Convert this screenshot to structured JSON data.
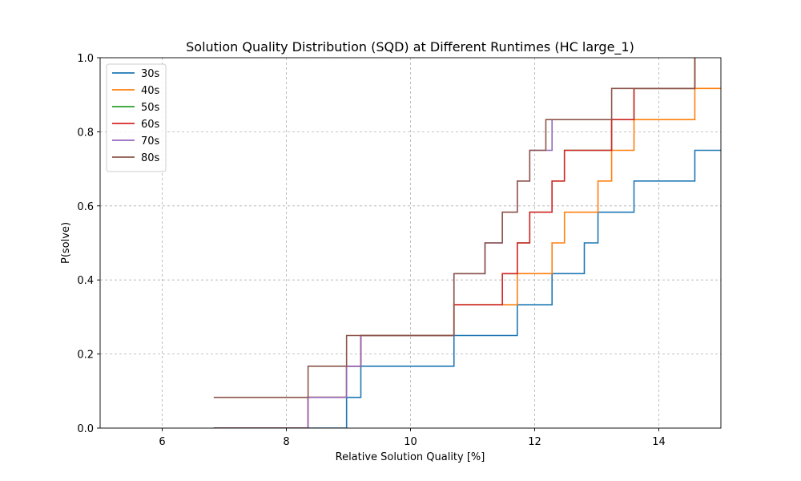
{
  "chart_data": {
    "type": "line",
    "step": true,
    "title": "Solution Quality Distribution (SQD) at Different Runtimes (HC large_1)",
    "xlabel": "Relative Solution Quality [%]",
    "ylabel": "P(solve)",
    "xlim": [
      5,
      15
    ],
    "ylim": [
      0,
      1
    ],
    "xticks": [
      6,
      8,
      10,
      12,
      14
    ],
    "yticks": [
      0.0,
      0.2,
      0.4,
      0.6,
      0.8,
      1.0
    ],
    "xtick_labels": [
      "6",
      "8",
      "10",
      "12",
      "14"
    ],
    "ytick_labels": [
      "0.0",
      "0.2",
      "0.4",
      "0.6",
      "0.8",
      "1.0"
    ],
    "grid": true,
    "legend_position": "top-left",
    "series": [
      {
        "name": "30s",
        "color": "#1f77b4",
        "points": [
          [
            6.83,
            0.0
          ],
          [
            8.97,
            0.0
          ],
          [
            8.97,
            0.083
          ],
          [
            9.2,
            0.083
          ],
          [
            9.2,
            0.167
          ],
          [
            10.7,
            0.167
          ],
          [
            10.7,
            0.25
          ],
          [
            11.72,
            0.25
          ],
          [
            11.72,
            0.333
          ],
          [
            12.28,
            0.333
          ],
          [
            12.28,
            0.417
          ],
          [
            12.8,
            0.417
          ],
          [
            12.8,
            0.5
          ],
          [
            13.02,
            0.5
          ],
          [
            13.02,
            0.583
          ],
          [
            13.6,
            0.583
          ],
          [
            13.6,
            0.667
          ],
          [
            14.58,
            0.667
          ],
          [
            14.58,
            0.75
          ],
          [
            15.0,
            0.75
          ]
        ]
      },
      {
        "name": "40s",
        "color": "#ff7f0e",
        "points": [
          [
            6.83,
            0.0
          ],
          [
            8.35,
            0.0
          ],
          [
            8.35,
            0.083
          ],
          [
            8.97,
            0.083
          ],
          [
            8.97,
            0.167
          ],
          [
            9.2,
            0.167
          ],
          [
            9.2,
            0.25
          ],
          [
            10.7,
            0.25
          ],
          [
            10.7,
            0.333
          ],
          [
            11.72,
            0.333
          ],
          [
            11.72,
            0.417
          ],
          [
            12.28,
            0.417
          ],
          [
            12.28,
            0.5
          ],
          [
            12.48,
            0.5
          ],
          [
            12.48,
            0.583
          ],
          [
            13.02,
            0.583
          ],
          [
            13.02,
            0.667
          ],
          [
            13.24,
            0.667
          ],
          [
            13.24,
            0.75
          ],
          [
            13.6,
            0.75
          ],
          [
            13.6,
            0.833
          ],
          [
            14.58,
            0.833
          ],
          [
            14.58,
            0.917
          ],
          [
            15.0,
            0.917
          ]
        ]
      },
      {
        "name": "50s",
        "color": "#2ca02c",
        "points": [
          [
            6.83,
            0.0
          ],
          [
            8.35,
            0.0
          ],
          [
            8.35,
            0.083
          ],
          [
            8.97,
            0.083
          ],
          [
            8.97,
            0.167
          ],
          [
            9.2,
            0.167
          ],
          [
            9.2,
            0.25
          ],
          [
            10.7,
            0.25
          ],
          [
            10.7,
            0.333
          ],
          [
            11.48,
            0.333
          ],
          [
            11.48,
            0.417
          ],
          [
            11.72,
            0.417
          ],
          [
            11.72,
            0.5
          ],
          [
            11.92,
            0.5
          ],
          [
            11.92,
            0.583
          ],
          [
            12.28,
            0.583
          ],
          [
            12.28,
            0.667
          ],
          [
            12.48,
            0.667
          ],
          [
            12.48,
            0.75
          ],
          [
            13.24,
            0.75
          ],
          [
            13.24,
            0.833
          ],
          [
            13.6,
            0.833
          ],
          [
            13.6,
            0.917
          ],
          [
            14.58,
            0.917
          ],
          [
            14.58,
            1.0
          ]
        ]
      },
      {
        "name": "60s",
        "color": "#d62728",
        "points": [
          [
            6.83,
            0.0
          ],
          [
            8.35,
            0.0
          ],
          [
            8.35,
            0.083
          ],
          [
            8.97,
            0.083
          ],
          [
            8.97,
            0.167
          ],
          [
            9.2,
            0.167
          ],
          [
            9.2,
            0.25
          ],
          [
            10.7,
            0.25
          ],
          [
            10.7,
            0.333
          ],
          [
            11.48,
            0.333
          ],
          [
            11.48,
            0.417
          ],
          [
            11.72,
            0.417
          ],
          [
            11.72,
            0.5
          ],
          [
            11.92,
            0.5
          ],
          [
            11.92,
            0.583
          ],
          [
            12.28,
            0.583
          ],
          [
            12.28,
            0.667
          ],
          [
            12.48,
            0.667
          ],
          [
            12.48,
            0.75
          ],
          [
            13.24,
            0.75
          ],
          [
            13.24,
            0.833
          ],
          [
            13.6,
            0.833
          ],
          [
            13.6,
            0.917
          ],
          [
            14.58,
            0.917
          ],
          [
            14.58,
            1.0
          ]
        ]
      },
      {
        "name": "70s",
        "color": "#9467bd",
        "points": [
          [
            6.83,
            0.0
          ],
          [
            8.35,
            0.0
          ],
          [
            8.35,
            0.083
          ],
          [
            8.97,
            0.083
          ],
          [
            8.97,
            0.167
          ],
          [
            9.2,
            0.167
          ],
          [
            9.2,
            0.25
          ],
          [
            10.7,
            0.25
          ],
          [
            10.7,
            0.417
          ],
          [
            11.2,
            0.417
          ],
          [
            11.2,
            0.5
          ],
          [
            11.48,
            0.5
          ],
          [
            11.48,
            0.583
          ],
          [
            11.72,
            0.583
          ],
          [
            11.72,
            0.667
          ],
          [
            11.92,
            0.667
          ],
          [
            11.92,
            0.75
          ],
          [
            12.28,
            0.75
          ],
          [
            12.28,
            0.833
          ]
        ]
      },
      {
        "name": "80s",
        "color": "#8c564b",
        "points": [
          [
            6.83,
            0.083
          ],
          [
            8.35,
            0.083
          ],
          [
            8.35,
            0.167
          ],
          [
            8.97,
            0.167
          ],
          [
            8.97,
            0.25
          ],
          [
            10.7,
            0.25
          ],
          [
            10.7,
            0.417
          ],
          [
            11.2,
            0.417
          ],
          [
            11.2,
            0.5
          ],
          [
            11.48,
            0.5
          ],
          [
            11.48,
            0.583
          ],
          [
            11.72,
            0.583
          ],
          [
            11.72,
            0.667
          ],
          [
            11.92,
            0.667
          ],
          [
            11.92,
            0.75
          ],
          [
            12.18,
            0.75
          ],
          [
            12.18,
            0.833
          ],
          [
            13.24,
            0.833
          ],
          [
            13.24,
            0.917
          ],
          [
            14.58,
            0.917
          ],
          [
            14.58,
            1.0
          ]
        ]
      }
    ]
  }
}
